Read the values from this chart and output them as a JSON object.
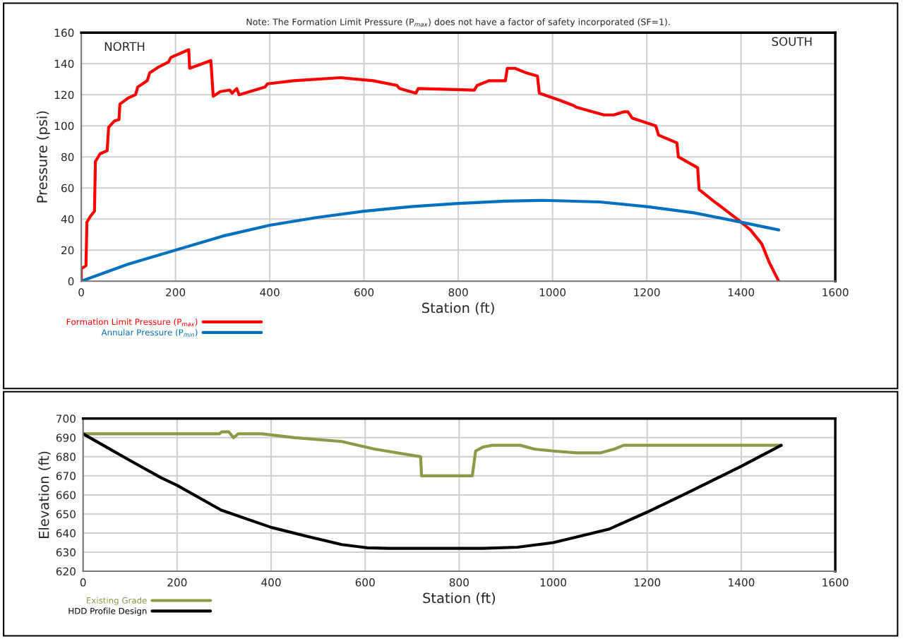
{
  "chart_data": [
    {
      "type": "line",
      "xlabel": "Station (ft)",
      "ylabel": "Pressure (psi)",
      "xlim": [
        0,
        1600
      ],
      "ylim": [
        0,
        160
      ],
      "xticks": [
        0,
        200,
        400,
        600,
        800,
        1000,
        1200,
        1400,
        1600
      ],
      "yticks": [
        0,
        20,
        40,
        60,
        80,
        100,
        120,
        140,
        160
      ],
      "grid": true,
      "legend": "bottom left",
      "annotations": [
        "Note: The Formation Limit Pressure (P$_{max}$) does not have a factor of safety incorporated (SF=1).",
        "NORTH",
        "SOUTH"
      ],
      "series": [
        {
          "name": "Formation Limit Pressure (P$_{max}$)",
          "color": "#ff0000",
          "x": [
            0,
            0,
            10,
            12,
            20,
            28,
            30,
            40,
            55,
            58,
            70,
            80,
            82,
            100,
            115,
            120,
            130,
            140,
            145,
            165,
            185,
            190,
            228,
            230,
            275,
            280,
            295,
            315,
            320,
            330,
            335,
            390,
            395,
            450,
            550,
            620,
            670,
            675,
            710,
            715,
            834,
            840,
            865,
            900,
            904,
            920,
            945,
            968,
            972,
            1010,
            1045,
            1050,
            1109,
            1130,
            1152,
            1160,
            1169,
            1219,
            1225,
            1264,
            1267,
            1308,
            1311,
            1340,
            1396,
            1420,
            1444,
            1460,
            1480
          ],
          "values": [
            0,
            8,
            10,
            38,
            42,
            45,
            77,
            82,
            84,
            99,
            103,
            104,
            114,
            118,
            120,
            125,
            127,
            129,
            134,
            138,
            141,
            144,
            149,
            137,
            142,
            119,
            122,
            123,
            121,
            124,
            120,
            125,
            127,
            129,
            131,
            129,
            126,
            124,
            121,
            124,
            123,
            126,
            129,
            129,
            137,
            137,
            134,
            132,
            121,
            117,
            113,
            112,
            107,
            107,
            109,
            109,
            105,
            100,
            94,
            89,
            80,
            73,
            59,
            52,
            39,
            33,
            24,
            12,
            0
          ]
        },
        {
          "name": "Annular Pressure (P$_{min}$)",
          "color": "#0070c0",
          "x": [
            0,
            100,
            200,
            300,
            400,
            500,
            600,
            700,
            800,
            900,
            980,
            1100,
            1200,
            1300,
            1400,
            1480
          ],
          "values": [
            0,
            11,
            20,
            29,
            36,
            41,
            45,
            48,
            50,
            51.5,
            52,
            51,
            48,
            44,
            38,
            33
          ]
        }
      ]
    },
    {
      "type": "line",
      "xlabel": "Station (ft)",
      "ylabel": "Elevation (ft)",
      "xlim": [
        0,
        1600
      ],
      "ylim": [
        620,
        700
      ],
      "xticks": [
        0,
        200,
        400,
        600,
        800,
        1000,
        1200,
        1400,
        1600
      ],
      "yticks": [
        620,
        630,
        640,
        650,
        660,
        670,
        680,
        690,
        700
      ],
      "grid": true,
      "legend": "bottom left",
      "series": [
        {
          "name": "Existing Grade",
          "color": "#8b9a46",
          "x": [
            0,
            290,
            295,
            310,
            320,
            330,
            380,
            450,
            550,
            620,
            718,
            720,
            828,
            835,
            850,
            870,
            930,
            960,
            1000,
            1050,
            1100,
            1130,
            1150,
            1485
          ],
          "values": [
            692,
            692,
            693,
            693,
            690,
            692,
            692,
            690,
            688,
            684,
            680,
            670,
            670,
            683,
            685,
            686,
            686,
            684,
            683,
            682,
            682,
            684,
            686,
            686
          ]
        },
        {
          "name": "HDD Profile Design",
          "color": "#000000",
          "x": [
            0,
            50,
            100,
            166,
            200,
            294,
            400,
            482,
            550,
            605,
            650,
            850,
            924,
            1000,
            1050,
            1118,
            1200,
            1285,
            1400,
            1485
          ],
          "values": [
            692,
            685,
            678,
            669,
            665,
            652,
            643,
            638,
            634,
            632.3,
            632,
            632,
            632.6,
            635,
            638,
            642,
            651,
            661,
            675,
            686
          ]
        }
      ]
    }
  ]
}
